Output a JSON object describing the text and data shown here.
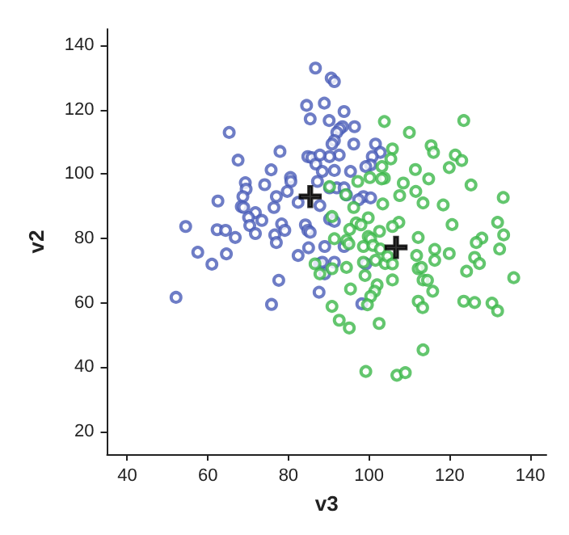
{
  "chart_data": {
    "type": "scatter",
    "xlabel": "v3",
    "ylabel": "v2",
    "xlim": [
      35,
      144
    ],
    "ylim": [
      13,
      145
    ],
    "xticks": [
      40,
      60,
      80,
      100,
      120,
      140
    ],
    "yticks": [
      20,
      40,
      60,
      80,
      100,
      120,
      140
    ],
    "grid": false,
    "marker": "circle",
    "series": [
      {
        "color": "#4a5db8",
        "x": [
          86.7,
          84.5,
          85.4,
          65.3,
          77.9,
          67.5,
          84.8,
          85.8,
          86.8,
          75.7,
          69.3,
          69.5,
          74.1,
          80.5,
          80.6,
          87.2,
          79.7,
          77.0,
          68.7,
          62.5,
          82.4,
          68.3,
          68.9,
          76.4,
          71.8,
          70.1,
          73.4,
          70.4,
          54.5,
          78.3,
          84.2,
          84.8,
          85.4,
          62.3,
          64.4,
          71.8,
          79.1,
          66.8,
          76.6,
          77.0,
          57.5,
          64.6,
          82.4,
          85.0,
          61.0,
          87.7,
          52.1,
          77.6,
          75.8,
          87.6,
          90.6,
          91.4,
          88.9,
          93.8,
          90.1,
          93.4,
          92.7,
          96.4,
          92.0,
          91.4,
          90.8,
          96.2,
          101.6,
          102.8,
          100.8,
          92.6,
          90.2,
          87.8,
          100.4,
          99.2,
          91.4,
          88.4,
          95.4,
          90.2,
          92.0,
          93.8,
          94.4,
          98.6,
          100.4,
          97.4,
          87.8,
          90.2,
          91.4,
          89.0,
          93.8,
          91.4,
          88.4,
          99.2,
          89.0,
          98.2
        ],
        "values": [
          132.9,
          121.3,
          117.1,
          112.9,
          107.0,
          104.3,
          105.4,
          105.1,
          103.1,
          101.3,
          97.3,
          95.3,
          96.7,
          98.9,
          97.7,
          97.7,
          94.6,
          93.0,
          93.0,
          91.6,
          91.2,
          89.9,
          89.6,
          89.6,
          88.0,
          86.5,
          85.6,
          84.0,
          83.7,
          84.5,
          84.2,
          82.5,
          81.9,
          82.7,
          82.5,
          81.5,
          82.5,
          80.3,
          81.1,
          78.7,
          75.7,
          75.2,
          74.7,
          77.1,
          72.0,
          72.1,
          61.7,
          67.0,
          59.5,
          63.3,
          129.8,
          128.7,
          122.0,
          119.4,
          116.6,
          114.7,
          114.0,
          114.7,
          112.9,
          110.4,
          109.3,
          109.3,
          109.3,
          106.7,
          105.4,
          105.9,
          105.4,
          105.9,
          102.8,
          102.3,
          101.1,
          100.8,
          100.8,
          95.7,
          95.7,
          95.7,
          93.5,
          93.0,
          92.6,
          92.0,
          90.2,
          86.0,
          85.3,
          77.5,
          77.5,
          72.6,
          72.6,
          72.1,
          69.0,
          59.7
        ]
      },
      {
        "color": "#3cb84a",
        "x": [
          103.8,
          123.5,
          110.0,
          115.4,
          116.0,
          105.8,
          105.4,
          121.4,
          123.0,
          119.9,
          111.5,
          103.2,
          103.8,
          103.1,
          100.2,
          97.2,
          114.8,
          108.5,
          125.3,
          90.2,
          94.2,
          111.6,
          107.6,
          133.3,
          113.4,
          118.4,
          103.4,
          96.2,
          99.8,
          90.8,
          96.8,
          98.0,
          107.4,
          105.8,
          120.6,
          131.9,
          95.2,
          102.6,
          133.4,
          128.0,
          126.6,
          99.8,
          100.4,
          112.2,
          91.4,
          94.4,
          95.0,
          98.6,
          101.0,
          102.8,
          111.8,
          116.3,
          116.3,
          119.9,
          126.2,
          127.4,
          132.4,
          98.6,
          101.6,
          104.0,
          104.6,
          105.8,
          86.6,
          94.4,
          90.8,
          87.8,
          99.0,
          105.8,
          112.2,
          113.0,
          124.2,
          113.4,
          114.5,
          102.0,
          101.4,
          100.4,
          95.4,
          115.8,
          135.9,
          90.8,
          99.6,
          112.2,
          113.3,
          123.5,
          126.2,
          130.5,
          131.9,
          92.6,
          95.1,
          102.5,
          113.4,
          99.2,
          106.9,
          109.0
        ],
        "values": [
          116.3,
          116.6,
          112.9,
          108.8,
          106.7,
          107.8,
          104.7,
          105.9,
          104.2,
          102.0,
          101.4,
          102.3,
          98.7,
          98.5,
          98.9,
          97.7,
          98.5,
          97.2,
          96.6,
          96.1,
          93.6,
          94.6,
          93.3,
          92.7,
          91.0,
          90.4,
          90.7,
          89.6,
          86.4,
          86.8,
          84.8,
          84.2,
          85.0,
          83.7,
          84.3,
          85.0,
          82.8,
          82.2,
          81.1,
          80.1,
          78.7,
          80.6,
          79.9,
          80.3,
          79.9,
          79.4,
          78.3,
          77.5,
          77.8,
          76.7,
          74.7,
          76.6,
          73.2,
          75.3,
          74.1,
          72.2,
          76.7,
          72.6,
          73.2,
          72.2,
          74.4,
          72.1,
          72.1,
          71.0,
          70.6,
          69.0,
          68.5,
          67.1,
          70.6,
          71.0,
          69.8,
          67.1,
          67.0,
          65.6,
          63.6,
          62.0,
          64.3,
          63.6,
          67.8,
          58.9,
          59.4,
          60.5,
          58.5,
          60.5,
          60.1,
          59.9,
          57.5,
          54.6,
          52.2,
          53.6,
          45.4,
          38.7,
          37.5,
          38.3
        ]
      },
      {
        "color": "#000000",
        "marker": "cross",
        "x": [
          85.4
        ],
        "values": [
          93.0
        ]
      },
      {
        "color": "#000000",
        "marker": "cross",
        "x": [
          106.7
        ],
        "values": [
          77.2
        ]
      }
    ]
  }
}
